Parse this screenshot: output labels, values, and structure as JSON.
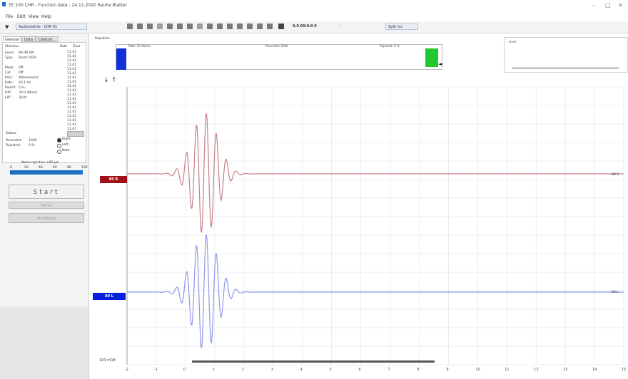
{
  "window": {
    "title": "TE 100 CHR - Function data - 24.11.2020 Rauhe Blatter",
    "controls": [
      "–",
      "□",
      "✕"
    ]
  },
  "menu": {
    "items": [
      "File",
      "Edit",
      "View",
      "Help"
    ]
  },
  "toolbar": {
    "combo1": "Audiometrie - CHR 01",
    "combo2": "0.0 00:0:0 0",
    "combo3": "Split ms"
  },
  "left_panel": {
    "tabs": [
      "General",
      "Data",
      "Calibrat..."
    ],
    "col_headers": {
      "a": "Stimulus",
      "b": "Rate",
      "c": "Zero"
    },
    "params": [
      {
        "k": "Level:",
        "v": "80 dB SPL"
      },
      {
        "k": "Type:",
        "v": "Burst (500)"
      },
      {
        "k": "",
        "v": ""
      },
      {
        "k": "Mask:",
        "v": "Off"
      },
      {
        "k": "Cal:",
        "v": "Off"
      },
      {
        "k": "Pola:",
        "v": "Alternierend"
      },
      {
        "k": "Rate:",
        "v": "20.1 Hz"
      },
      {
        "k": "Polarit:",
        "v": "Con."
      },
      {
        "k": "HPF:",
        "v": "30.0 dB/oct"
      },
      {
        "k": "LPF:",
        "v": "3kHz"
      }
    ],
    "right_col": [
      "11.41",
      "11.41",
      "11.41",
      "11.41",
      "11.41",
      "11.41",
      "11.41",
      "11.41",
      "11.41",
      "11.41",
      "11.41",
      "11.41",
      "11.41",
      "11.41",
      "11.41",
      "11.41",
      "11.41",
      "11.41",
      "11.41"
    ],
    "status_label": "Status:",
    "recorded_label": "Recorded:",
    "recorded_val": "1000",
    "rejected_label": "Rejected:",
    "rejected_val": "0 %",
    "ear_options": [
      "Right",
      "Left",
      "Both"
    ],
    "slider_label": "Noise rejection ±60 µV",
    "slider_ticks": [
      "0",
      "20",
      "40",
      "60",
      "80",
      "100"
    ],
    "start_label": "Start",
    "pause_label": "Pause",
    "stop_label": "Stop/Reset"
  },
  "overview": {
    "left_label": "Rejection",
    "seg1": "Rate: 20 Stim/s",
    "seg2": "Recorded: 1000",
    "seg3": "Rejected: 0 %",
    "rpanel_label": "Level"
  },
  "plot": {
    "channel_right_label": "80 R",
    "channel_left_label": "80 L",
    "channel_right_end": "80 R",
    "channel_left_end": "80 L",
    "scale_label": "100 nV/d",
    "x_ticks": [
      "-2",
      "-1",
      "0",
      "1",
      "2",
      "3",
      "4",
      "5",
      "6",
      "7",
      "8",
      "9",
      "10",
      "11",
      "12",
      "13",
      "14",
      "15"
    ],
    "colors": {
      "right": "#c0101a",
      "left": "#1a2fdc",
      "right_trace": "#c77f84",
      "left_trace": "#8f96ea",
      "grid": "#d6e4ec"
    }
  }
}
